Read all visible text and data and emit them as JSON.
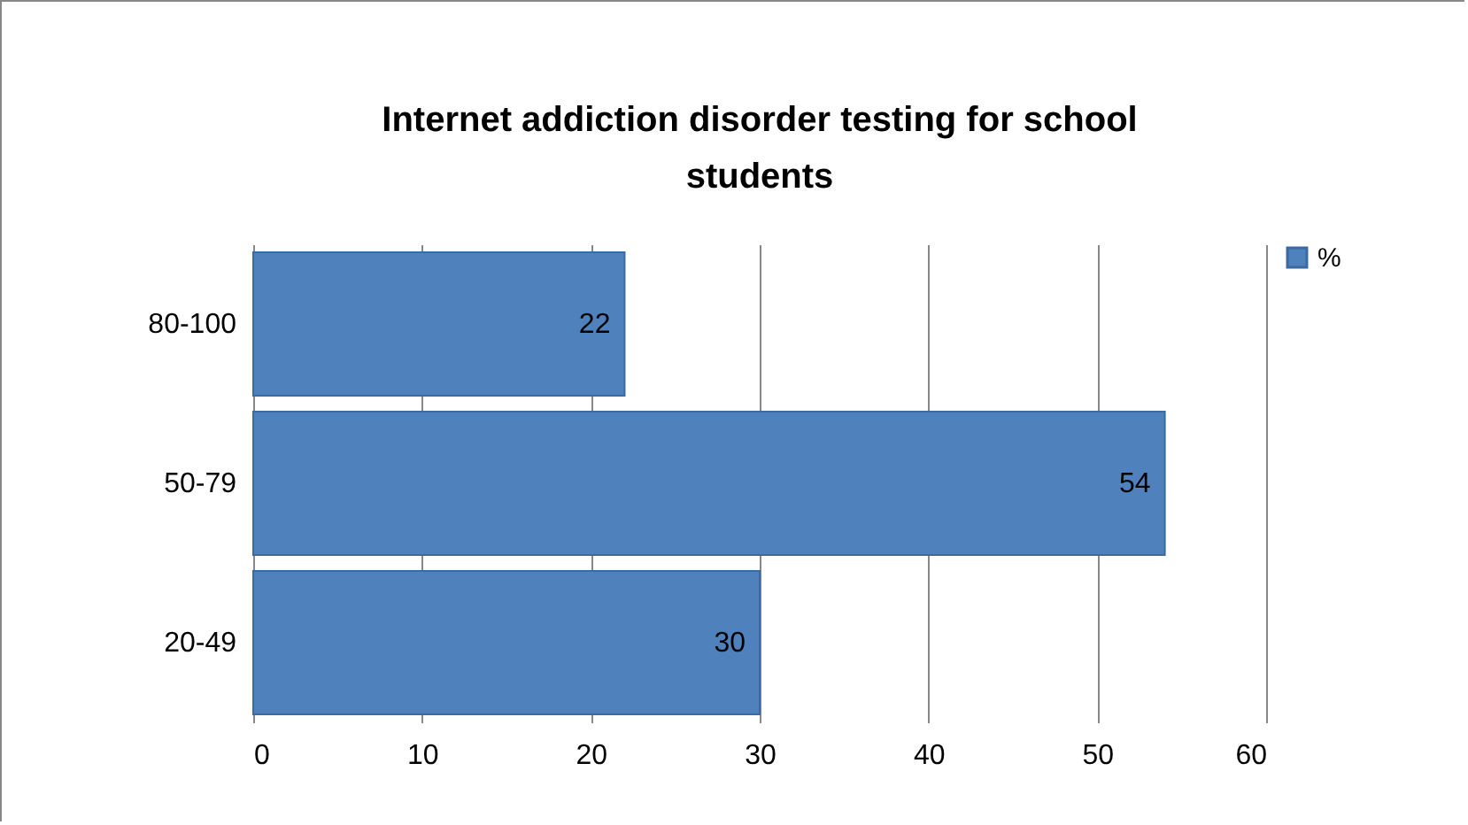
{
  "chart_data": {
    "type": "bar",
    "orientation": "horizontal",
    "title": "Internet addiction disorder testing for school students",
    "categories": [
      "80-100",
      "50-79",
      "20-49"
    ],
    "series": [
      {
        "name": "%",
        "color": "#4f81bd",
        "values": [
          22,
          54,
          30
        ]
      }
    ],
    "xlim": [
      0,
      60
    ],
    "xticks": [
      0,
      10,
      20,
      30,
      40,
      50,
      60
    ],
    "grid": "x",
    "legend": "right",
    "data_labels": true
  }
}
